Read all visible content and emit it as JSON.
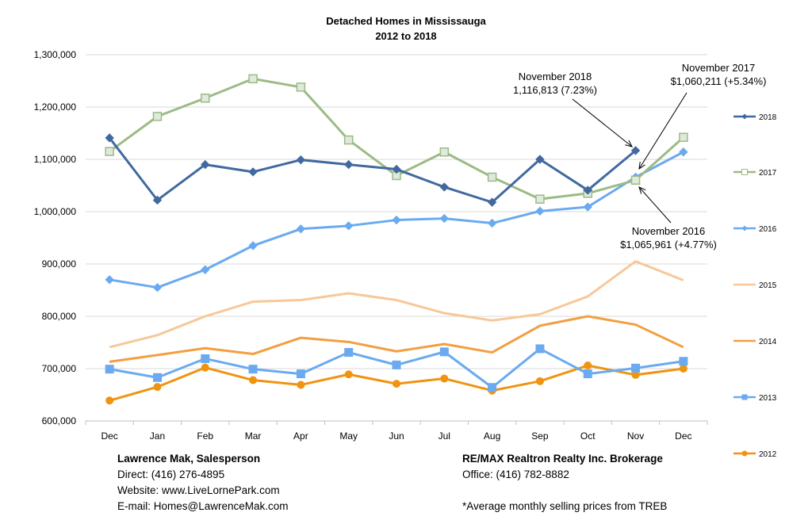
{
  "title": "Detached Homes in Mississauga",
  "subtitle": "2012 to 2018",
  "chart_data": {
    "type": "line",
    "title": "Detached Homes in Mississauga",
    "subtitle": "2012 to 2018",
    "xlabel": "",
    "ylabel": "",
    "categories": [
      "Dec",
      "Jan",
      "Feb",
      "Mar",
      "Apr",
      "May",
      "Jun",
      "Jul",
      "Aug",
      "Sep",
      "Oct",
      "Nov",
      "Dec"
    ],
    "ylim": [
      600000,
      1300000
    ],
    "yticks": [
      600000,
      700000,
      800000,
      900000,
      1000000,
      1100000,
      1200000,
      1300000
    ],
    "ytick_labels": [
      "600,000",
      "700,000",
      "800,000",
      "900,000",
      "1,000,000",
      "1,100,000",
      "1,200,000",
      "1,300,000"
    ],
    "grid": "horizontal",
    "legend_position": "right",
    "series": [
      {
        "name": "2018",
        "color": "#4169a0",
        "marker": "diamond",
        "values": [
          1141000,
          1022000,
          1090000,
          1076000,
          1099000,
          1090000,
          1081000,
          1047000,
          1018000,
          1100000,
          1041000,
          1116813,
          null
        ]
      },
      {
        "name": "2017",
        "color": "#9cbb85",
        "marker": "square-open",
        "values": [
          1115000,
          1182000,
          1217000,
          1254000,
          1238000,
          1137000,
          1069000,
          1114000,
          1066000,
          1024000,
          1035000,
          1060211,
          1142000
        ]
      },
      {
        "name": "2016",
        "color": "#6aaaf0",
        "marker": "diamond",
        "values": [
          870000,
          855000,
          889000,
          935000,
          967000,
          973000,
          984000,
          987000,
          978000,
          1001000,
          1009000,
          1065961,
          1114000
        ]
      },
      {
        "name": "2015",
        "color": "#f7c899",
        "marker": "none",
        "values": [
          741000,
          764000,
          800000,
          828000,
          831000,
          844000,
          831000,
          806000,
          792000,
          804000,
          838000,
          905000,
          869000
        ]
      },
      {
        "name": "2014",
        "color": "#f29f40",
        "marker": "none",
        "values": [
          713000,
          726000,
          739000,
          728000,
          759000,
          751000,
          733000,
          747000,
          731000,
          782000,
          800000,
          784000,
          741000
        ]
      },
      {
        "name": "2013",
        "color": "#6aaaf0",
        "marker": "square",
        "values": [
          699000,
          683000,
          719000,
          699000,
          690000,
          731000,
          707000,
          732000,
          664000,
          738000,
          690000,
          701000,
          714000
        ]
      },
      {
        "name": "2012",
        "color": "#ef9410",
        "marker": "circle",
        "values": [
          639000,
          665000,
          702000,
          678000,
          669000,
          689000,
          671000,
          681000,
          658000,
          676000,
          706000,
          688000,
          700000
        ]
      }
    ],
    "annotations": [
      {
        "line1": "November 2018",
        "line2": "1,116,813 (7.23%)"
      },
      {
        "line1": "November 2017",
        "line2": "$1,060,211 (+5.34%)"
      },
      {
        "line1": "November 2016",
        "line2": "$1,065,961 (+4.77%)"
      }
    ]
  },
  "footer": {
    "left": {
      "name": "Lawrence Mak, Salesperson",
      "direct": "Direct:  (416) 276-4895",
      "website": "Website:  www.LiveLornePark.com",
      "email": "E-mail:  Homes@LawrenceMak.com"
    },
    "right": {
      "brokerage": "RE/MAX Realtron Realty Inc. Brokerage",
      "office": "Office: (416) 782-8882",
      "note": "*Average monthly selling prices from TREB"
    }
  }
}
